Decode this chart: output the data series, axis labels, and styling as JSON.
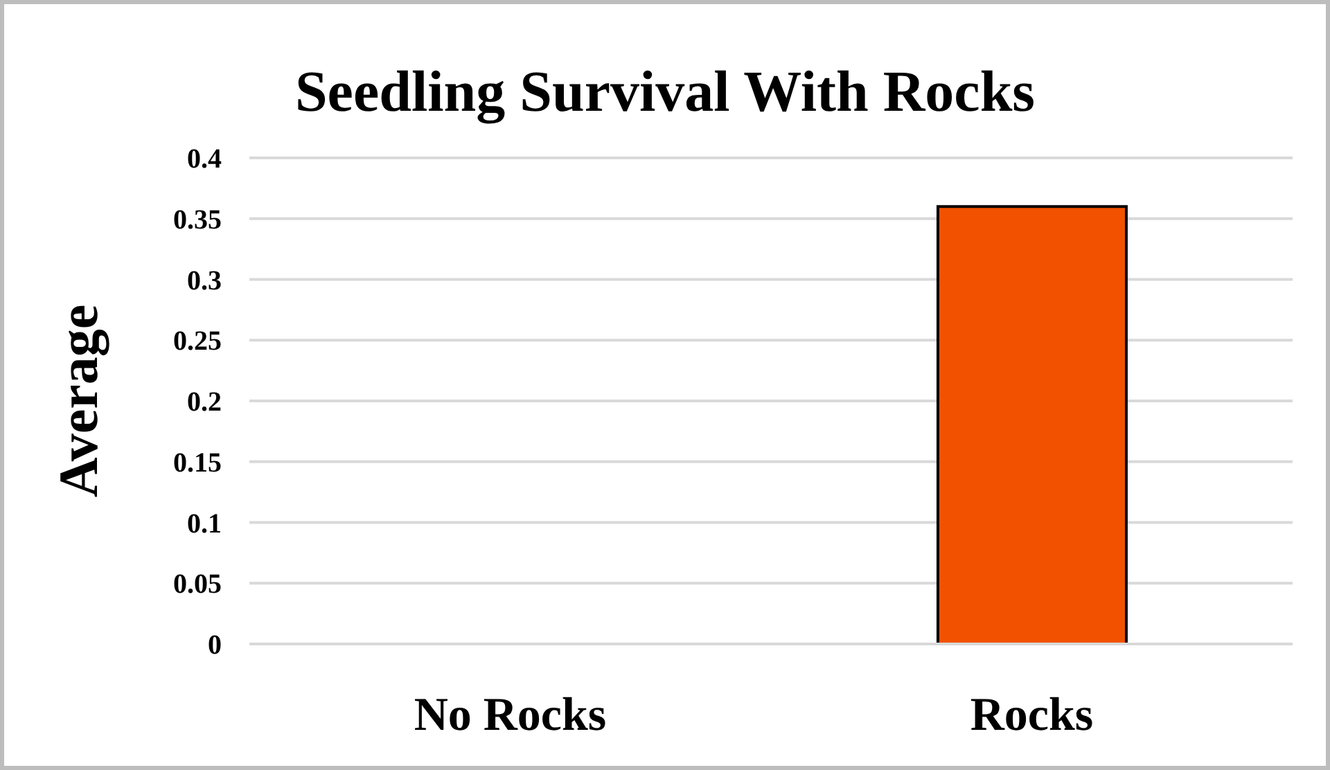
{
  "chart_data": {
    "type": "bar",
    "title": "Seedling Survival With Rocks",
    "ylabel": "Average",
    "categories": [
      "No Rocks",
      "Rocks"
    ],
    "values": [
      0,
      0.36
    ],
    "color": "#f25200",
    "ylim": [
      0,
      0.4
    ],
    "yticks": [
      0,
      0.05,
      0.1,
      0.15,
      0.2,
      0.25,
      0.3,
      0.35,
      0.4
    ],
    "grid": "y"
  }
}
